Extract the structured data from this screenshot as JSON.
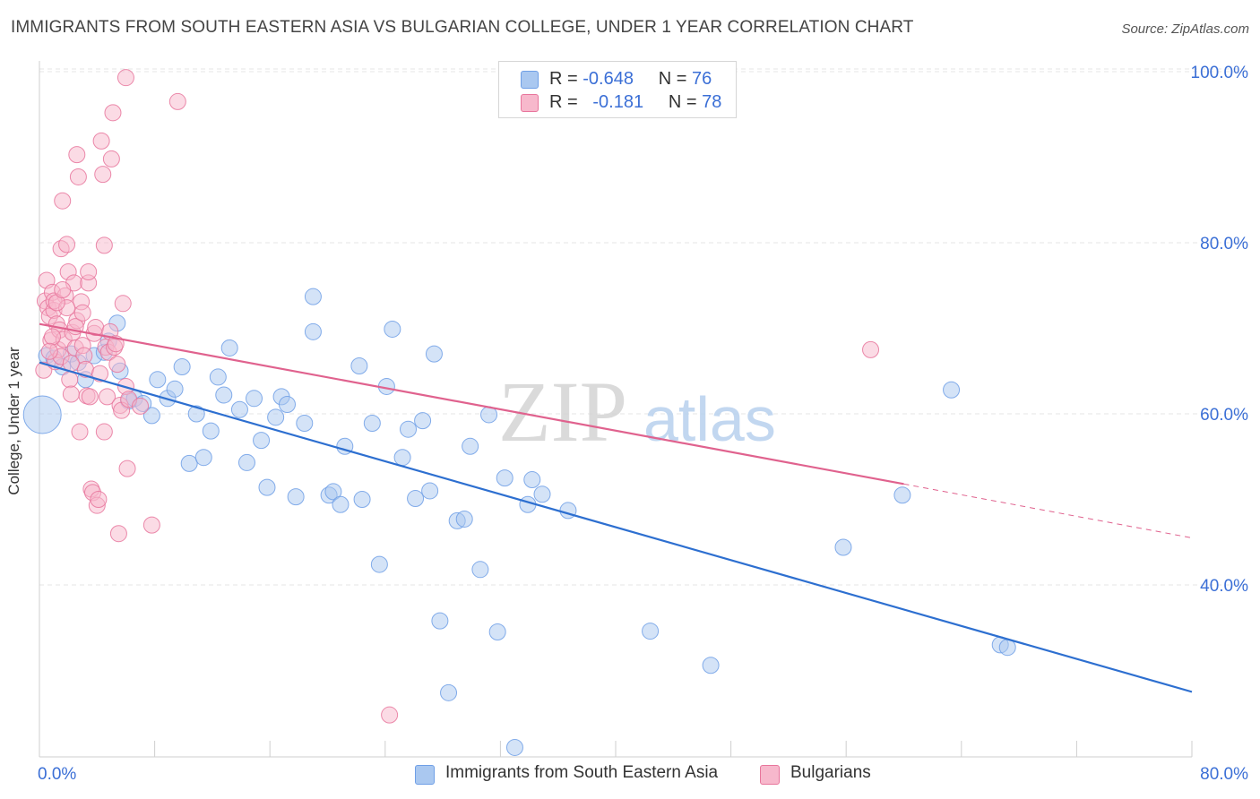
{
  "header": {
    "title": "IMMIGRANTS FROM SOUTH EASTERN ASIA VS BULGARIAN COLLEGE, UNDER 1 YEAR CORRELATION CHART",
    "source": "Source: ZipAtlas.com"
  },
  "watermark": {
    "zip": "ZIP",
    "atlas": "atlas"
  },
  "legend": {
    "series1": {
      "r_label": "R =",
      "r_value": "-0.648",
      "n_label": "N =",
      "n_value": "76",
      "color": "#aac8f0"
    },
    "series2": {
      "r_label": "R =",
      "r_value": "-0.181",
      "n_label": "N =",
      "n_value": "78",
      "color": "#f7b8cc"
    }
  },
  "bottom_legend": {
    "series1": "Immigrants from South Eastern Asia",
    "series2": "Bulgarians"
  },
  "chart_data": {
    "type": "scatter",
    "title": "IMMIGRANTS FROM SOUTH EASTERN ASIA VS BULGARIAN COLLEGE, UNDER 1 YEAR CORRELATION CHART",
    "xlabel": "",
    "ylabel": "College, Under 1 year",
    "xlim": [
      0,
      80
    ],
    "ylim": [
      5,
      104
    ],
    "x_tick_labels": [
      "0.0%",
      "80.0%"
    ],
    "y_tick_labels": [
      "40.0%",
      "60.0%",
      "80.0%",
      "100.0%"
    ],
    "y_ticks": [
      40,
      60,
      80,
      100
    ],
    "grid": true,
    "legend_position": "top-center",
    "series": [
      {
        "name": "Immigrants from South Eastern Asia",
        "color": "#6f9fe6",
        "fill": "#aac8f0",
        "trend": {
          "x0": 0,
          "y0": 66.0,
          "x1": 80,
          "y1": 27.5
        },
        "points": [
          [
            0.5,
            66.8
          ],
          [
            1.0,
            66.5
          ],
          [
            1.6,
            65.5
          ],
          [
            2.2,
            67.0
          ],
          [
            2.7,
            66.0
          ],
          [
            3.2,
            64.0
          ],
          [
            3.8,
            66.8
          ],
          [
            4.5,
            67.2
          ],
          [
            4.8,
            68.5
          ],
          [
            5.4,
            70.6
          ],
          [
            5.6,
            65.0
          ],
          [
            6.2,
            61.5
          ],
          [
            6.6,
            61.8
          ],
          [
            7.2,
            61.2
          ],
          [
            7.8,
            59.8
          ],
          [
            8.2,
            64.0
          ],
          [
            8.9,
            61.8
          ],
          [
            9.4,
            62.9
          ],
          [
            9.9,
            65.5
          ],
          [
            10.4,
            54.2
          ],
          [
            10.9,
            60.0
          ],
          [
            11.4,
            54.9
          ],
          [
            11.9,
            58.0
          ],
          [
            12.4,
            64.3
          ],
          [
            12.8,
            62.2
          ],
          [
            13.2,
            67.7
          ],
          [
            13.9,
            60.5
          ],
          [
            14.4,
            54.3
          ],
          [
            14.9,
            61.8
          ],
          [
            15.4,
            56.9
          ],
          [
            15.8,
            51.4
          ],
          [
            16.4,
            59.6
          ],
          [
            16.8,
            62.0
          ],
          [
            17.2,
            61.1
          ],
          [
            17.8,
            50.3
          ],
          [
            18.4,
            58.9
          ],
          [
            19.0,
            69.6
          ],
          [
            19.0,
            73.7
          ],
          [
            20.1,
            50.5
          ],
          [
            20.4,
            50.9
          ],
          [
            20.9,
            49.4
          ],
          [
            21.2,
            56.2
          ],
          [
            22.2,
            65.6
          ],
          [
            22.4,
            50.0
          ],
          [
            23.1,
            58.9
          ],
          [
            23.6,
            42.4
          ],
          [
            24.1,
            63.2
          ],
          [
            24.5,
            69.9
          ],
          [
            25.2,
            54.9
          ],
          [
            25.6,
            58.2
          ],
          [
            26.1,
            50.1
          ],
          [
            26.6,
            59.2
          ],
          [
            27.1,
            51.0
          ],
          [
            27.4,
            67.0
          ],
          [
            27.8,
            35.8
          ],
          [
            28.4,
            27.4
          ],
          [
            29.0,
            47.5
          ],
          [
            29.5,
            47.7
          ],
          [
            29.9,
            56.2
          ],
          [
            30.6,
            41.8
          ],
          [
            31.2,
            59.9
          ],
          [
            31.8,
            34.5
          ],
          [
            32.3,
            52.5
          ],
          [
            33.0,
            21.0
          ],
          [
            33.9,
            49.4
          ],
          [
            34.2,
            52.3
          ],
          [
            34.9,
            50.6
          ],
          [
            36.7,
            48.7
          ],
          [
            42.4,
            34.6
          ],
          [
            46.6,
            30.6
          ],
          [
            55.8,
            44.4
          ],
          [
            59.9,
            50.5
          ],
          [
            63.3,
            62.8
          ],
          [
            66.7,
            33.0
          ],
          [
            67.2,
            32.7
          ],
          [
            0.2,
            59.9
          ]
        ]
      },
      {
        "name": "Bulgarians",
        "color": "#e8759c",
        "fill": "#f7b8cc",
        "trend": {
          "x0": 0,
          "y0": 70.5,
          "x1": 60,
          "y1": 51.8
        },
        "trend_dashed": {
          "x0": 60,
          "y0": 51.8,
          "x1": 80,
          "y1": 45.5
        },
        "points": [
          [
            0.3,
            65.1
          ],
          [
            0.4,
            73.2
          ],
          [
            0.5,
            75.6
          ],
          [
            0.6,
            72.4
          ],
          [
            0.7,
            71.4
          ],
          [
            0.8,
            68.6
          ],
          [
            0.9,
            74.2
          ],
          [
            1.0,
            72.1
          ],
          [
            1.1,
            66.1
          ],
          [
            1.2,
            70.5
          ],
          [
            1.3,
            67.5
          ],
          [
            1.4,
            69.8
          ],
          [
            1.5,
            79.3
          ],
          [
            1.6,
            84.9
          ],
          [
            1.7,
            68.7
          ],
          [
            1.8,
            73.8
          ],
          [
            1.9,
            79.8
          ],
          [
            2.0,
            76.6
          ],
          [
            2.1,
            64.0
          ],
          [
            2.2,
            62.3
          ],
          [
            2.3,
            69.5
          ],
          [
            2.4,
            75.3
          ],
          [
            2.5,
            67.7
          ],
          [
            2.6,
            90.3
          ],
          [
            2.6,
            70.9
          ],
          [
            2.7,
            87.7
          ],
          [
            2.8,
            57.9
          ],
          [
            2.9,
            73.1
          ],
          [
            3.0,
            68.0
          ],
          [
            3.1,
            66.8
          ],
          [
            3.2,
            65.2
          ],
          [
            3.3,
            62.1
          ],
          [
            3.4,
            75.3
          ],
          [
            3.5,
            62.0
          ],
          [
            3.6,
            51.2
          ],
          [
            3.7,
            50.8
          ],
          [
            3.8,
            69.4
          ],
          [
            3.9,
            70.1
          ],
          [
            4.0,
            49.3
          ],
          [
            4.1,
            50.0
          ],
          [
            4.2,
            64.7
          ],
          [
            4.3,
            91.9
          ],
          [
            4.4,
            88.0
          ],
          [
            4.5,
            79.7
          ],
          [
            4.6,
            67.8
          ],
          [
            4.7,
            62.0
          ],
          [
            4.8,
            67.2
          ],
          [
            4.9,
            69.6
          ],
          [
            5.0,
            89.8
          ],
          [
            5.1,
            95.2
          ],
          [
            5.2,
            67.8
          ],
          [
            5.3,
            68.2
          ],
          [
            5.4,
            65.8
          ],
          [
            5.5,
            46.0
          ],
          [
            5.6,
            61.0
          ],
          [
            5.7,
            60.4
          ],
          [
            5.8,
            72.9
          ],
          [
            6.0,
            99.3
          ],
          [
            6.0,
            63.2
          ],
          [
            6.1,
            53.6
          ],
          [
            6.2,
            61.7
          ],
          [
            7.0,
            60.9
          ],
          [
            7.8,
            47.0
          ],
          [
            9.6,
            96.5
          ],
          [
            1.0,
            73.2
          ],
          [
            1.5,
            66.7
          ],
          [
            0.9,
            69.0
          ],
          [
            1.9,
            72.4
          ],
          [
            2.5,
            70.2
          ],
          [
            3.0,
            71.8
          ],
          [
            3.4,
            76.6
          ],
          [
            2.2,
            65.9
          ],
          [
            1.2,
            73.0
          ],
          [
            24.3,
            24.8
          ],
          [
            57.7,
            67.5
          ],
          [
            4.5,
            57.9
          ],
          [
            0.7,
            67.3
          ],
          [
            1.6,
            74.5
          ]
        ]
      }
    ]
  }
}
